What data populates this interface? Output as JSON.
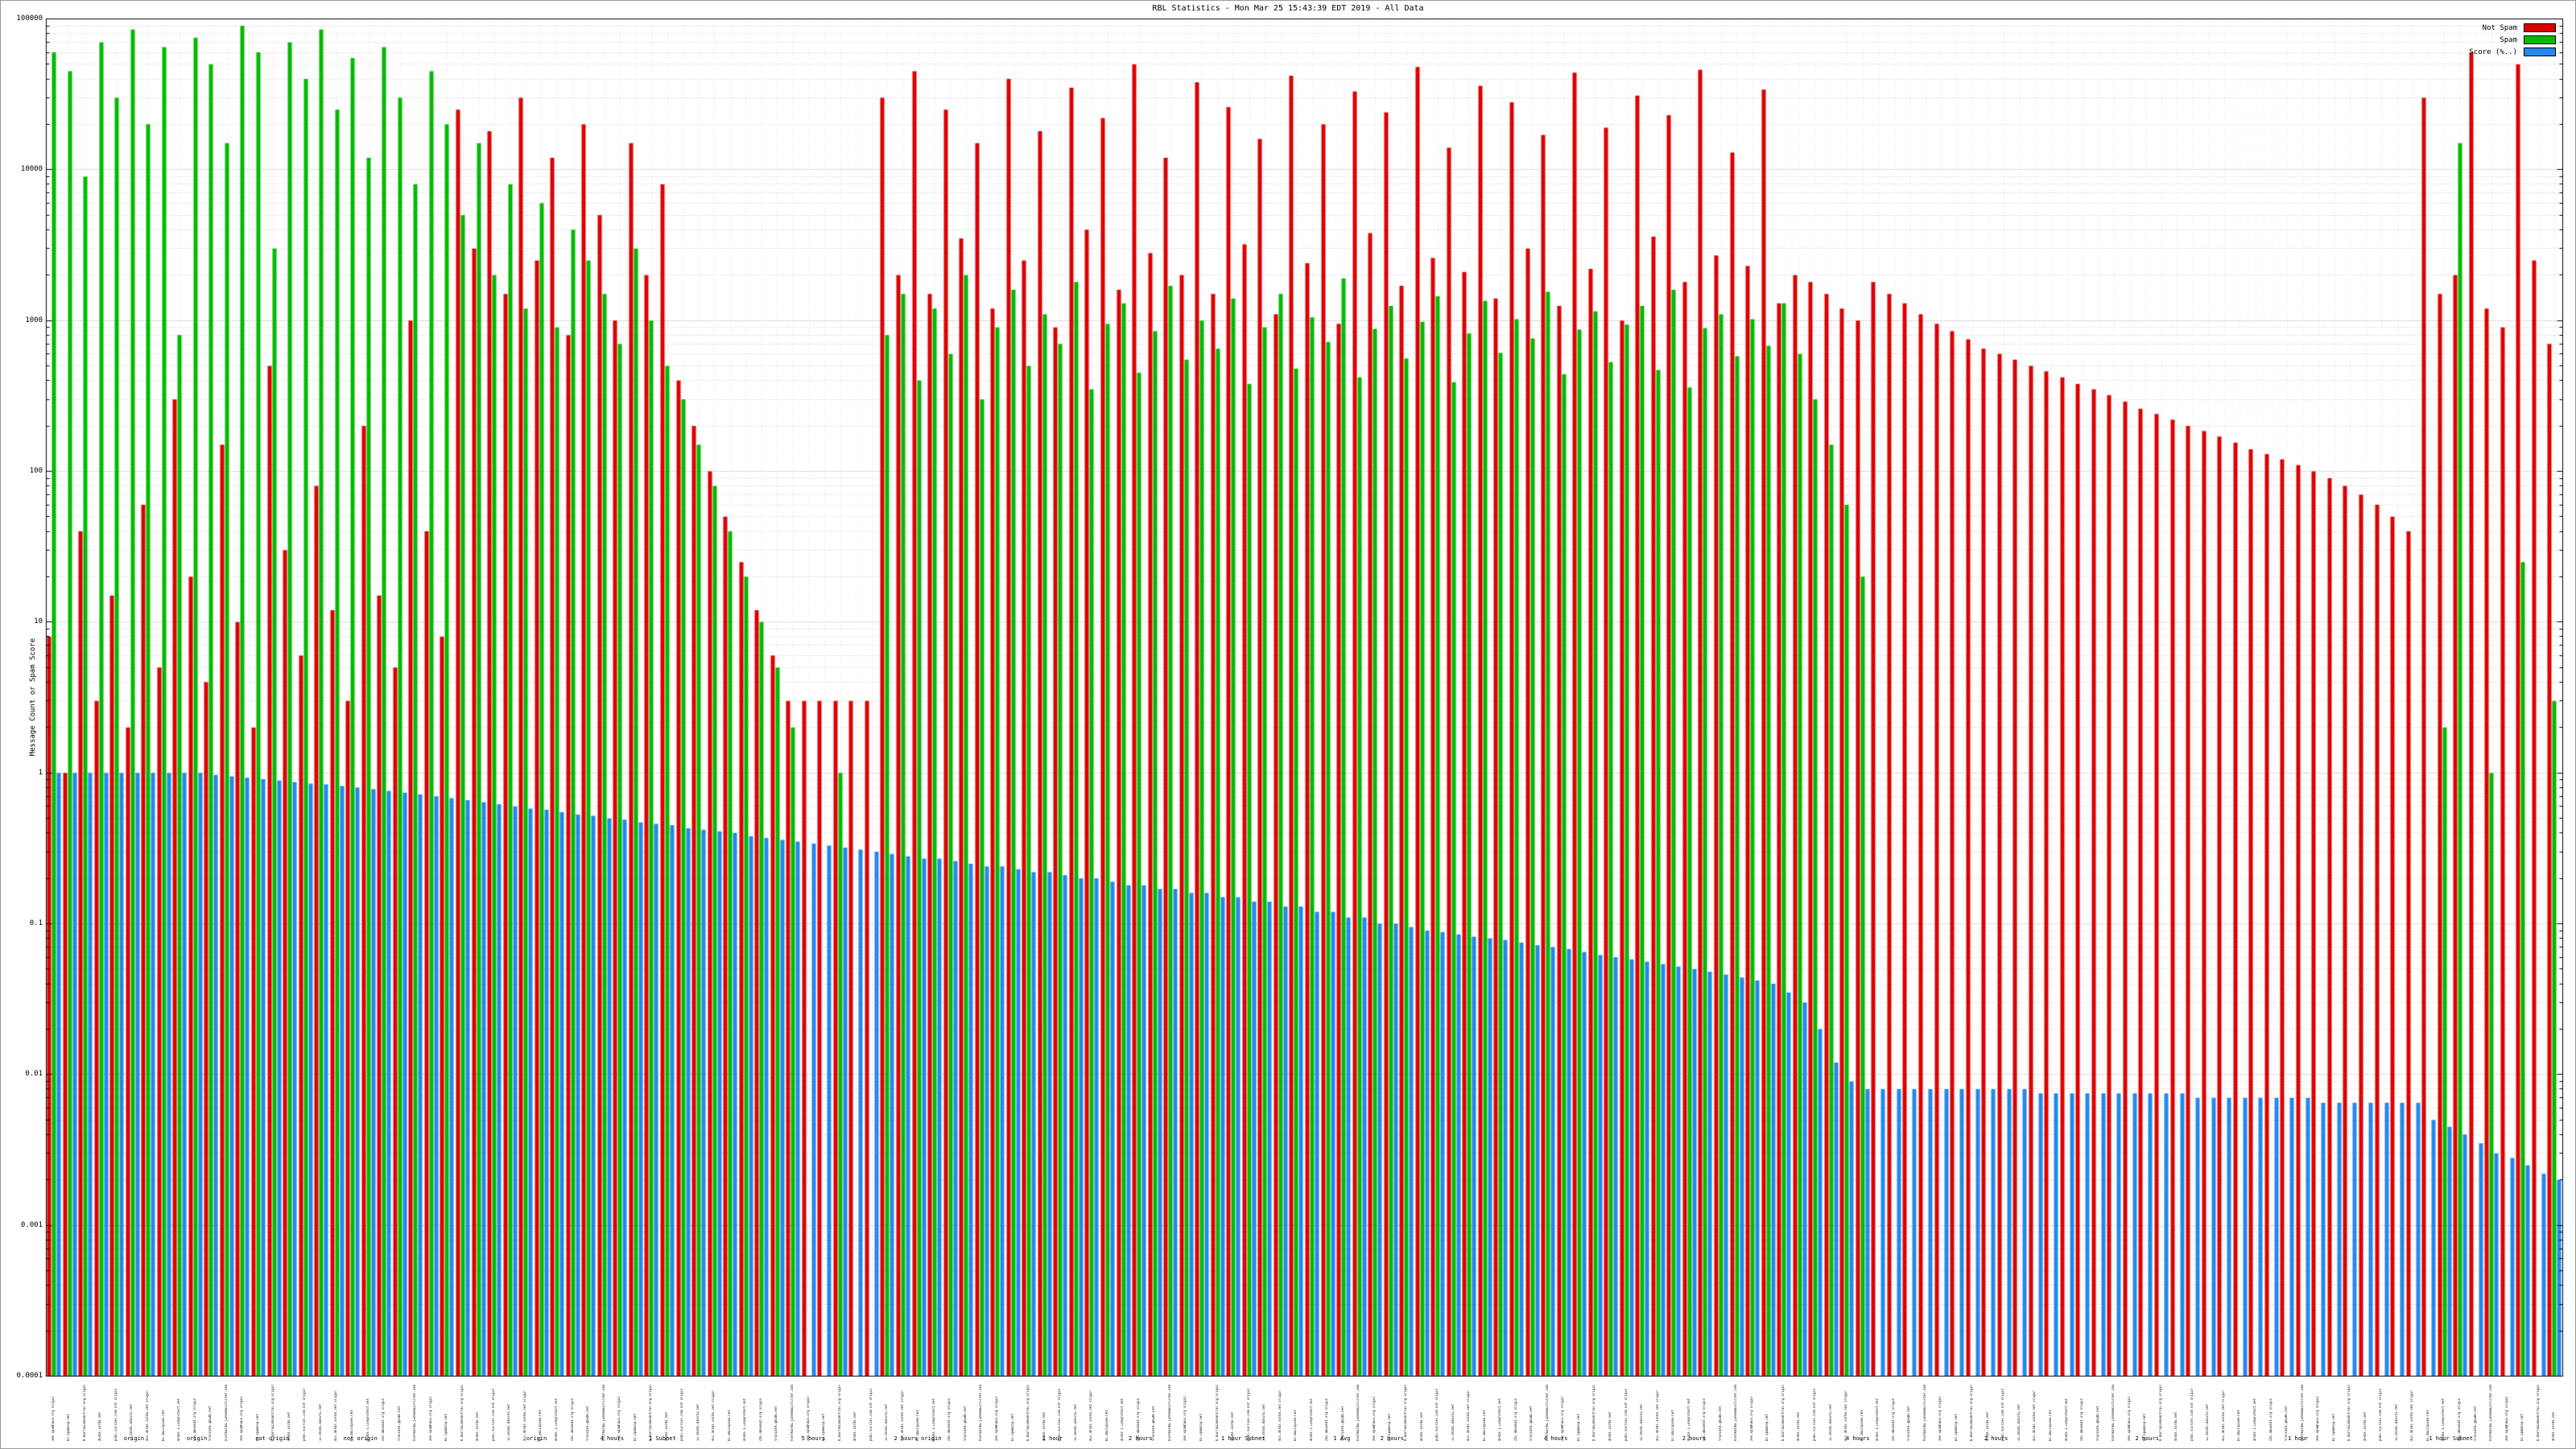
{
  "page": {
    "title": "RBL Statistics - Mon Mar 25 15:43:39 EDT 2019 - All Data"
  },
  "chart_data": {
    "type": "bar",
    "title": "RBL Statistics - Mon Mar 25 15:43:39 EDT 2019 - All Data",
    "xlabel": "",
    "ylabel": "Message Count or Spam Score",
    "y_scale": "log",
    "ylim": [
      0.0001,
      100000
    ],
    "ytick_labels": [
      "100000",
      "10000",
      "1000",
      "100",
      "10",
      "1",
      "0.1",
      "0.01",
      "0.001",
      "0.0001"
    ],
    "grid": true,
    "legend_position": "top-right",
    "legend": [
      {
        "label": "Not Spam",
        "color": "#dd0000"
      },
      {
        "label": "Spam",
        "color": "#00bb00"
      },
      {
        "label": "Score (%..)",
        "color": "#2288ee"
      }
    ],
    "series": [
      {
        "name": "Not Spam",
        "color": "#dd0000",
        "values": [
          8,
          1,
          40,
          3,
          15,
          2,
          60,
          5,
          300,
          20,
          4,
          150,
          10,
          2,
          500,
          30,
          6,
          80,
          12,
          3,
          200,
          15,
          5,
          1000,
          40,
          8,
          25000,
          3000,
          18000,
          1500,
          30000,
          2500,
          12000,
          800,
          20000,
          5000,
          1000,
          15000,
          2000,
          8000,
          400,
          200,
          100,
          50,
          25,
          12,
          6,
          3,
          3,
          3,
          3,
          3,
          3,
          30000,
          2000,
          45000,
          1500,
          25000,
          3500,
          15000,
          1200,
          40000,
          2500,
          18000,
          900,
          35000,
          4000,
          22000,
          1600,
          50000,
          2800,
          12000,
          2000,
          38000,
          1500,
          26000,
          3200,
          16000,
          1100,
          42000,
          2400,
          20000,
          950,
          33000,
          3800,
          24000,
          1700,
          48000,
          2600,
          14000,
          2100,
          36000,
          1400,
          28000,
          3000,
          17000,
          1250,
          44000,
          2200,
          19000,
          1000,
          31000,
          3600,
          23000,
          1800,
          46000,
          2700,
          13000,
          2300,
          34000,
          1300,
          2000,
          1800,
          1500,
          1200,
          1000,
          1800,
          1500,
          1300,
          1100,
          950,
          850,
          750,
          650,
          600,
          550,
          500,
          460,
          420,
          380,
          350,
          320,
          290,
          260,
          240,
          220,
          200,
          185,
          170,
          155,
          140,
          130,
          120,
          110,
          100,
          90,
          80,
          70,
          60,
          50,
          40,
          30000,
          1500,
          2000,
          60000,
          1200,
          900,
          50000,
          2500,
          700
        ]
      },
      {
        "name": "Spam",
        "color": "#00bb00",
        "values": [
          60000,
          45000,
          9000,
          70000,
          30000,
          85000,
          20000,
          65000,
          800,
          75000,
          50000,
          15000,
          90000,
          60000,
          3000,
          70000,
          40000,
          85000,
          25000,
          55000,
          12000,
          65000,
          30000,
          8000,
          45000,
          20000,
          5000,
          15000,
          2000,
          8000,
          1200,
          6000,
          900,
          4000,
          2500,
          1500,
          700,
          3000,
          1000,
          500,
          300,
          150,
          80,
          40,
          20,
          10,
          5,
          2,
          0,
          0,
          1,
          0,
          0,
          800,
          1500,
          400,
          1200,
          600,
          2000,
          300,
          900,
          1600,
          500,
          1100,
          700,
          1800,
          350,
          950,
          1300,
          450,
          850,
          1700,
          550,
          1000,
          650,
          1400,
          380,
          900,
          1500,
          480,
          1050,
          720,
          1900,
          420,
          880,
          1250,
          560,
          980,
          1450,
          390,
          820,
          1350,
          610,
          1020,
          760,
          1550,
          440,
          870,
          1150,
          530,
          940,
          1250,
          470,
          1600,
          360,
          890,
          1100,
          580,
          1020,
          680,
          1300,
          600,
          300,
          150,
          60,
          20,
          0,
          0,
          0,
          0,
          0,
          0,
          0,
          0,
          0,
          0,
          0,
          0,
          0,
          0,
          0,
          0,
          0,
          0,
          0,
          0,
          0,
          0,
          0,
          0,
          0,
          0,
          0,
          0,
          0,
          0,
          0,
          0,
          0,
          0,
          0,
          0,
          2,
          15000,
          0,
          1,
          0,
          25,
          0,
          3
        ]
      },
      {
        "name": "Score (%..)",
        "color": "#2288ee",
        "values": [
          1,
          1,
          1,
          1,
          1,
          1,
          1,
          1,
          1,
          1,
          0.97,
          0.95,
          0.93,
          0.91,
          0.89,
          0.87,
          0.85,
          0.84,
          0.82,
          0.8,
          0.78,
          0.76,
          0.74,
          0.72,
          0.7,
          0.68,
          0.66,
          0.64,
          0.62,
          0.6,
          0.58,
          0.57,
          0.55,
          0.53,
          0.52,
          0.5,
          0.49,
          0.47,
          0.46,
          0.45,
          0.43,
          0.42,
          0.41,
          0.4,
          0.38,
          0.37,
          0.36,
          0.35,
          0.34,
          0.33,
          0.32,
          0.31,
          0.3,
          0.29,
          0.28,
          0.27,
          0.27,
          0.26,
          0.25,
          0.24,
          0.24,
          0.23,
          0.22,
          0.22,
          0.21,
          0.2,
          0.2,
          0.19,
          0.18,
          0.18,
          0.17,
          0.17,
          0.16,
          0.16,
          0.15,
          0.15,
          0.14,
          0.14,
          0.13,
          0.13,
          0.12,
          0.12,
          0.11,
          0.11,
          0.1,
          0.1,
          0.095,
          0.09,
          0.088,
          0.085,
          0.082,
          0.08,
          0.078,
          0.075,
          0.072,
          0.07,
          0.068,
          0.065,
          0.062,
          0.06,
          0.058,
          0.056,
          0.054,
          0.052,
          0.05,
          0.048,
          0.046,
          0.044,
          0.042,
          0.04,
          0.035,
          0.03,
          0.02,
          0.012,
          0.009,
          0.008,
          0.008,
          0.008,
          0.008,
          0.008,
          0.008,
          0.008,
          0.008,
          0.008,
          0.008,
          0.008,
          0.0075,
          0.0075,
          0.0075,
          0.0075,
          0.0075,
          0.0075,
          0.0075,
          0.0075,
          0.0075,
          0.0075,
          0.007,
          0.007,
          0.007,
          0.007,
          0.007,
          0.007,
          0.007,
          0.007,
          0.0065,
          0.0065,
          0.0065,
          0.0065,
          0.0065,
          0.0065,
          0.0065,
          0.005,
          0.0045,
          0.004,
          0.0035,
          0.003,
          0.0028,
          0.0025,
          0.0022,
          0.002
        ]
      }
    ],
    "xlabel_samples": [
      "zen.spamhaus.org origin",
      "bl.spamcop.net",
      "b.barracudacentral.org origin",
      "dnsbl.sorbs.net",
      "psbl.surriel.com not origin",
      "ix.dnsbl.manitu.net",
      "dul.dnsbl.sorbs.net origin",
      "bl.mailspike.net",
      "dnsbl-1.uceprotect.net",
      "cbl.abuseat.org origin",
      "truncate.gbudb.net",
      "hostkarma.junkemailfilter.com"
    ],
    "sub_labels": [
      {
        "text": "origin",
        "x": 0.035
      },
      {
        "text": "origin",
        "x": 0.06
      },
      {
        "text": "not origin",
        "x": 0.09
      },
      {
        "text": "not origin",
        "x": 0.125
      },
      {
        "text": "origin",
        "x": 0.195
      },
      {
        "text": "4 hours",
        "x": 0.225
      },
      {
        "text": "1 Subnet",
        "x": 0.245
      },
      {
        "text": "5 hours",
        "x": 0.305
      },
      {
        "text": "2 hours origin",
        "x": 0.345
      },
      {
        "text": "1 hour",
        "x": 0.4
      },
      {
        "text": "2 hours",
        "x": 0.435
      },
      {
        "text": "1 hour Subnet",
        "x": 0.475
      },
      {
        "text": "1 Avg",
        "x": 0.515
      },
      {
        "text": "2 hours",
        "x": 0.535
      },
      {
        "text": "4 hours",
        "x": 0.6
      },
      {
        "text": "2 hours",
        "x": 0.655
      },
      {
        "text": "4 hours",
        "x": 0.72
      },
      {
        "text": "2 hours",
        "x": 0.775
      },
      {
        "text": "2 hours",
        "x": 0.835
      },
      {
        "text": "1 hour",
        "x": 0.895
      },
      {
        "text": "1 hour Subnet",
        "x": 0.955
      }
    ],
    "style": {
      "background": "#ffffff",
      "plot_border": "#000000",
      "major_grid": "#999999",
      "minor_grid": "#cccccc",
      "vertical_grid": "#dddddd"
    }
  }
}
